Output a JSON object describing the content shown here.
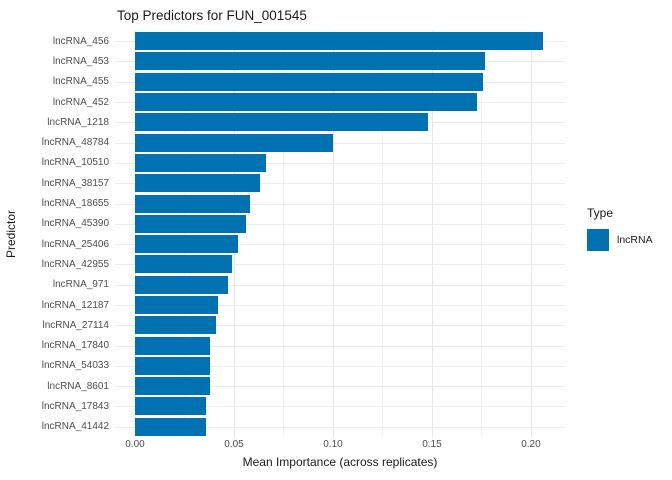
{
  "title": "Top Predictors for FUN_001545",
  "legend": {
    "title": "Type",
    "items": [
      {
        "label": "lncRNA",
        "color": "#0072B2"
      }
    ]
  },
  "chart_data": {
    "type": "bar",
    "orientation": "horizontal",
    "title": "Top Predictors for FUN_001545",
    "xlabel": "Mean Importance (across replicates)",
    "ylabel": "Predictor",
    "series_name": "lncRNA",
    "bar_color": "#0072B2",
    "categories": [
      "lncRNA_456",
      "lncRNA_453",
      "lncRNA_455",
      "lncRNA_452",
      "lncRNA_1218",
      "lncRNA_48784",
      "lncRNA_10510",
      "lncRNA_38157",
      "lncRNA_18655",
      "lncRNA_45390",
      "lncRNA_25406",
      "lncRNA_42955",
      "lncRNA_971",
      "lncRNA_12187",
      "lncRNA_27114",
      "lncRNA_17840",
      "lncRNA_54033",
      "lncRNA_8601",
      "lncRNA_17843",
      "lncRNA_41442"
    ],
    "values": [
      0.206,
      0.177,
      0.176,
      0.173,
      0.148,
      0.1,
      0.066,
      0.063,
      0.058,
      0.056,
      0.052,
      0.049,
      0.047,
      0.042,
      0.041,
      0.038,
      0.038,
      0.038,
      0.036,
      0.036
    ],
    "x_ticks": [
      0,
      0.05,
      0.1,
      0.15,
      0.2
    ],
    "x_tick_labels": [
      "0.00",
      "0.05",
      "0.10",
      "0.15",
      "0.20"
    ],
    "x_minor_ticks": [
      0.025,
      0.075,
      0.125,
      0.175
    ],
    "xlim": [
      -0.0101,
      0.2172
    ],
    "grid": true,
    "legend_position": "right",
    "background": "#ffffff",
    "grid_major_color": "#e4e4e4",
    "grid_minor_color": "#f2f2f2"
  }
}
